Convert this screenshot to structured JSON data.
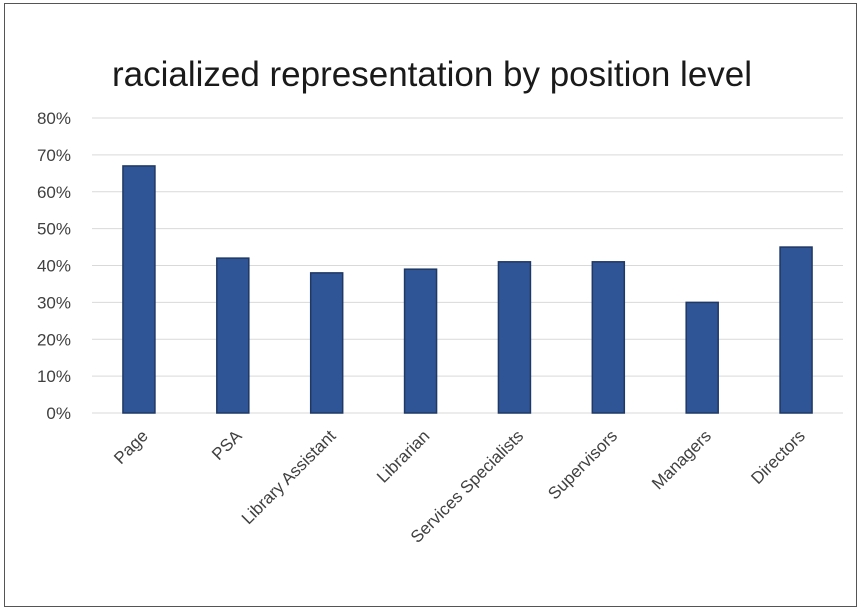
{
  "chart_data": {
    "type": "bar",
    "title": "racialized representation by position level",
    "categories": [
      "Page",
      "PSA",
      "Library Assistant",
      "Librarian",
      "Services Specialists",
      "Supervisors",
      "Managers",
      "Directors"
    ],
    "values": [
      0.67,
      0.42,
      0.38,
      0.39,
      0.41,
      0.41,
      0.3,
      0.45
    ],
    "ylim": [
      0,
      0.8
    ],
    "yticks": [
      0,
      0.1,
      0.2,
      0.3,
      0.4,
      0.5,
      0.6,
      0.7,
      0.8
    ],
    "ytick_labels": [
      "0%",
      "10%",
      "20%",
      "30%",
      "40%",
      "50%",
      "60%",
      "70%",
      "80%"
    ],
    "xlabel": "",
    "ylabel": "",
    "grid": true,
    "legend": "none",
    "colors": {
      "bar_fill": "#2f5597",
      "bar_stroke": "#1f3864",
      "grid": "#d9d9d9",
      "text": "#404040",
      "title": "#1a1a1a"
    }
  }
}
